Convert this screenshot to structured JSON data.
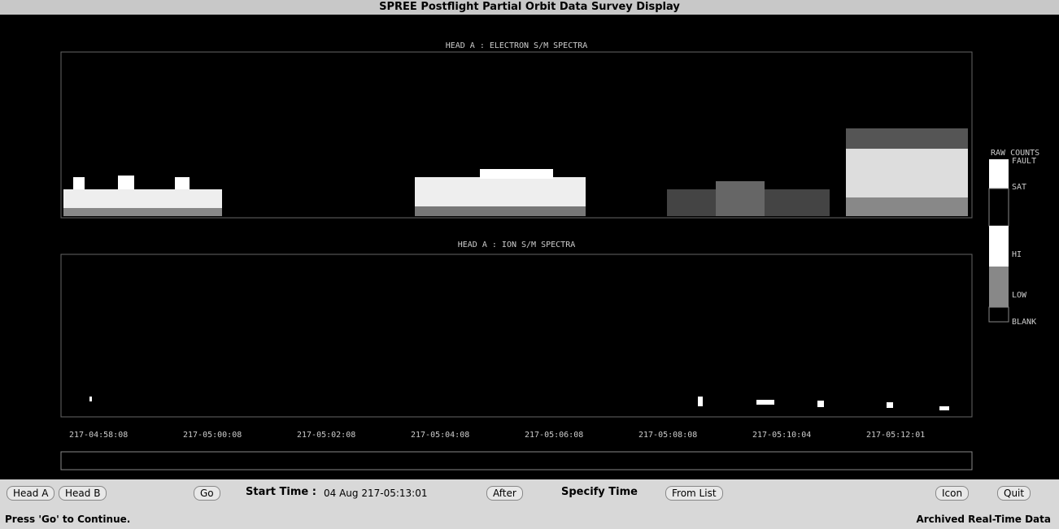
{
  "window": {
    "title": "SPREE Postflight Partial Orbit Data Survey Display"
  },
  "panels": [
    {
      "title": "HEAD A : ELECTRON S/M SPECTRA"
    },
    {
      "title": "HEAD A : ION S/M SPECTRA"
    }
  ],
  "time_axis": {
    "labels": [
      "217-04:58:08",
      "217-05:00:08",
      "217-05:02:08",
      "217-05:04:08",
      "217-05:06:08",
      "217-05:08:08",
      "217-05:10:04",
      "217-05:12:01"
    ]
  },
  "legend": {
    "title": "RAW COUNTS",
    "levels": [
      "FAULT",
      "SAT",
      "HI",
      "LOW",
      "BLANK"
    ]
  },
  "controls": {
    "head_a": "Head A",
    "head_b": "Head B",
    "go": "Go",
    "start_time_label": "Start Time :",
    "start_time": "04 Aug 217-05:13:01",
    "after": "After",
    "specify_time": "Specify Time",
    "from_list": "From List",
    "icon": "Icon",
    "quit": "Quit"
  },
  "status": {
    "message": "Press 'Go' to Continue.",
    "mode": "Archived Real-Time Data"
  }
}
